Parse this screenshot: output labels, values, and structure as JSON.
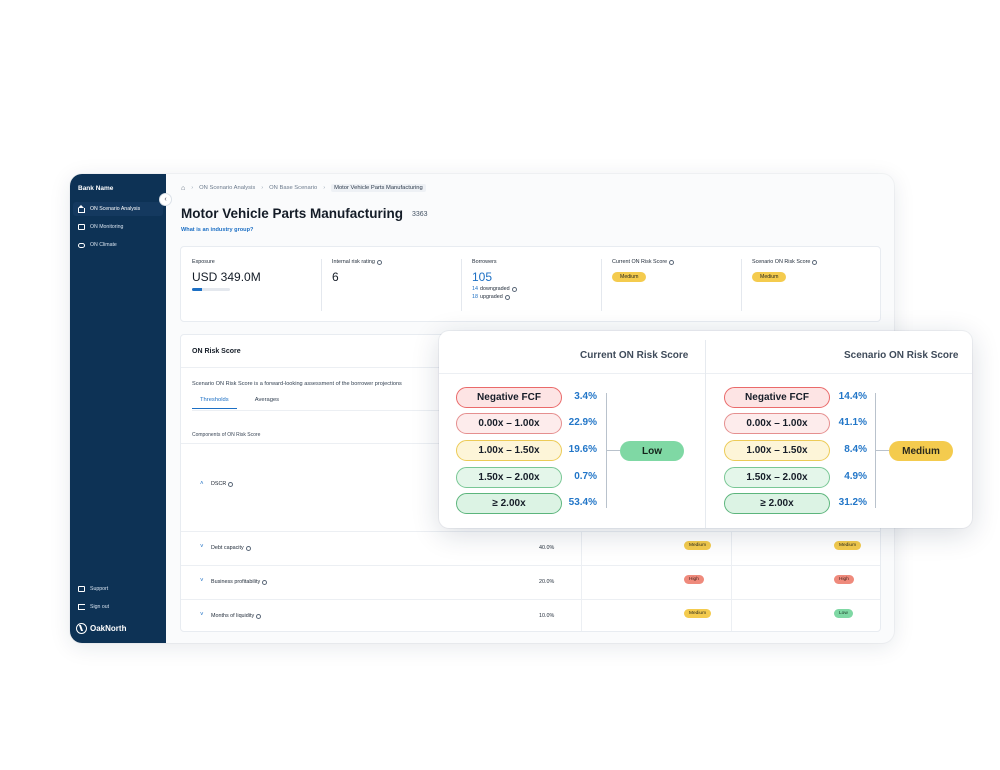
{
  "sidebar": {
    "bank_name": "Bank Name",
    "items": [
      {
        "label": "ON Scenario Analysis",
        "icon": "home-icon",
        "active": true
      },
      {
        "label": "ON Monitoring",
        "icon": "monitor-icon"
      },
      {
        "label": "ON Climate",
        "icon": "cloud-icon"
      }
    ],
    "footer_items": [
      {
        "label": "Support",
        "icon": "support-icon"
      },
      {
        "label": "Sign out",
        "icon": "sign-out-icon"
      }
    ],
    "logo_text": "OakNorth"
  },
  "breadcrumb": [
    "ON Scenario Analysis",
    "ON Base Scenario",
    "Motor Vehicle Parts Manufacturing"
  ],
  "page": {
    "title": "Motor Vehicle Parts Manufacturing",
    "count": "3363",
    "industry_link": "What is an industry group?"
  },
  "kpis": {
    "exposure": {
      "label": "Exposure",
      "value": "USD 349.0M",
      "progress": 0.25
    },
    "internal_rating": {
      "label": "Internal risk rating",
      "value": "6"
    },
    "borrowers": {
      "label": "Borrowers",
      "value": "105",
      "downgraded_count": "14",
      "downgraded_label": "downgraded",
      "upgraded_count": "18",
      "upgraded_label": "upgraded"
    },
    "current_score": {
      "label": "Current ON Risk Score",
      "value": "Medium"
    },
    "scenario_score": {
      "label": "Scenario ON Risk Score",
      "value": "Medium"
    }
  },
  "risk_section": {
    "title": "ON Risk Score",
    "description": "Scenario ON Risk Score is a forward-looking assessment of the borrower projections",
    "tabs": [
      "Thresholds",
      "Averages"
    ],
    "components_header": "Components of ON Risk Score",
    "dscr_label": "DSCR",
    "rows": [
      {
        "name": "Debt capacity",
        "weight": "40.0%",
        "current": "Medium",
        "scenario": "Medium"
      },
      {
        "name": "Business profitability",
        "weight": "20.0%",
        "current": "High",
        "scenario": "High"
      },
      {
        "name": "Months of liquidity",
        "weight": "10.0%",
        "current": "Medium",
        "scenario": "Low"
      }
    ]
  },
  "overlay": {
    "current": {
      "title": "Current ON Risk Score",
      "bands": [
        {
          "label": "Negative FCF",
          "pct": "3.4%"
        },
        {
          "label": "0.00x – 1.00x",
          "pct": "22.9%"
        },
        {
          "label": "1.00x – 1.50x",
          "pct": "19.6%"
        },
        {
          "label": "1.50x – 2.00x",
          "pct": "0.7%"
        },
        {
          "label": "≥ 2.00x",
          "pct": "53.4%"
        }
      ],
      "result": "Low"
    },
    "scenario": {
      "title": "Scenario ON Risk Score",
      "bands": [
        {
          "label": "Negative FCF",
          "pct": "14.4%"
        },
        {
          "label": "0.00x – 1.00x",
          "pct": "41.1%"
        },
        {
          "label": "1.00x – 1.50x",
          "pct": "8.4%"
        },
        {
          "label": "1.50x – 2.00x",
          "pct": "4.9%"
        },
        {
          "label": "≥ 2.00x",
          "pct": "31.2%"
        }
      ],
      "result": "Medium"
    }
  }
}
